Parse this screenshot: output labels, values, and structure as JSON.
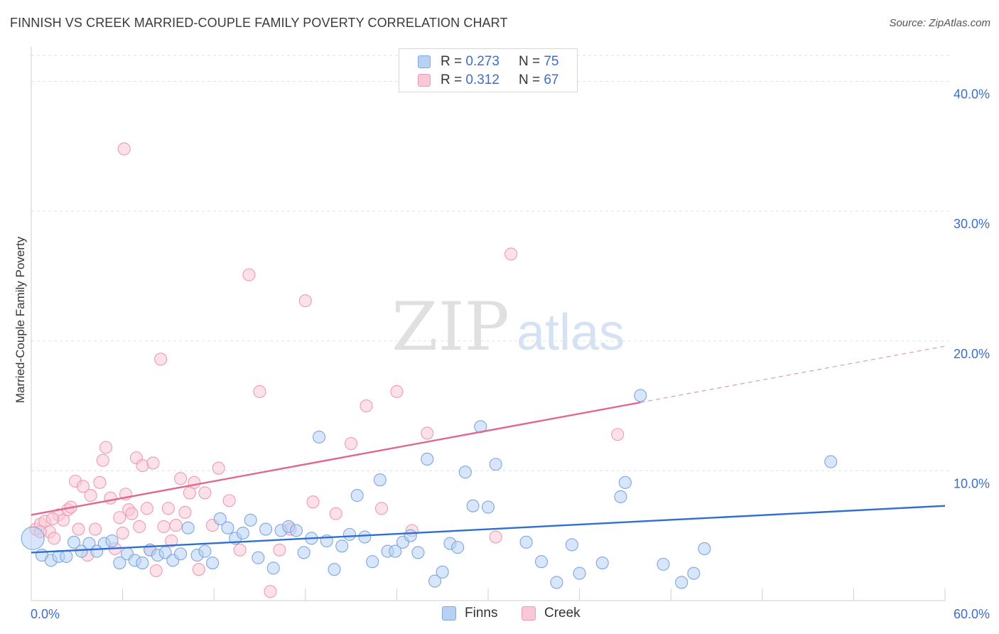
{
  "title": "FINNISH VS CREEK MARRIED-COUPLE FAMILY POVERTY CORRELATION CHART",
  "source": "Source: ZipAtlas.com",
  "watermark": {
    "zip": "ZIP",
    "atlas": "atlas"
  },
  "legend": {
    "rows": [
      {
        "r_label": "R =",
        "r_value": "0.273",
        "n_label": "N =",
        "n_value": "75"
      },
      {
        "r_label": "R =",
        "r_value": "0.312",
        "n_label": "N =",
        "n_value": "67"
      }
    ]
  },
  "bottom_legend": {
    "finns": "Finns",
    "creek": "Creek"
  },
  "colors": {
    "finns_fill": "#b7d1f5",
    "finns_stroke": "#7ea6e0",
    "finns_line": "#2f6fcf",
    "creek_fill": "#f9c8d7",
    "creek_stroke": "#ee9ab4",
    "creek_line": "#e06890",
    "tick_label": "#3a6fc9",
    "grid": "#dde2ea"
  },
  "chart_data": {
    "type": "scatter",
    "title": "FINNISH VS CREEK MARRIED-COUPLE FAMILY POVERTY CORRELATION CHART",
    "xlabel": "",
    "ylabel": "Married-Couple Family Poverty",
    "xlim": [
      0,
      60
    ],
    "ylim": [
      0,
      42
    ],
    "x_tick_labels": [
      {
        "value": 0,
        "label": "0.0%"
      },
      {
        "value": 60,
        "label": "60.0%"
      }
    ],
    "y_tick_labels": [
      {
        "value": 10,
        "label": "10.0%"
      },
      {
        "value": 20,
        "label": "20.0%"
      },
      {
        "value": 30,
        "label": "30.0%"
      },
      {
        "value": 40,
        "label": "40.0%"
      }
    ],
    "x_minor_ticks": [
      0,
      6,
      12,
      18,
      24,
      30,
      36,
      42,
      48,
      54,
      60
    ],
    "series": [
      {
        "name": "Finns",
        "R": 0.273,
        "N": 75,
        "trend": {
          "x0": 0,
          "y0": 3.7,
          "x1": 60,
          "y1": 7.3,
          "dashed_from": null
        },
        "points": [
          [
            0.1,
            4.8,
            "big"
          ],
          [
            0.7,
            3.5
          ],
          [
            1.3,
            3.1
          ],
          [
            1.8,
            3.4
          ],
          [
            2.3,
            3.4
          ],
          [
            2.8,
            4.5
          ],
          [
            3.3,
            3.8
          ],
          [
            3.8,
            4.4
          ],
          [
            4.3,
            3.8
          ],
          [
            4.8,
            4.4
          ],
          [
            5.3,
            4.6
          ],
          [
            5.8,
            2.9
          ],
          [
            6.3,
            3.6
          ],
          [
            6.8,
            3.1
          ],
          [
            7.3,
            2.9
          ],
          [
            7.8,
            3.9
          ],
          [
            8.3,
            3.5
          ],
          [
            8.8,
            3.7
          ],
          [
            9.3,
            3.1
          ],
          [
            9.8,
            3.6
          ],
          [
            10.3,
            5.6
          ],
          [
            10.9,
            3.5
          ],
          [
            11.4,
            3.8
          ],
          [
            11.9,
            2.9
          ],
          [
            12.4,
            6.3
          ],
          [
            12.9,
            5.6
          ],
          [
            13.4,
            4.8
          ],
          [
            13.9,
            5.2
          ],
          [
            14.4,
            6.2
          ],
          [
            14.9,
            3.3
          ],
          [
            15.4,
            5.5
          ],
          [
            15.9,
            2.5
          ],
          [
            16.4,
            5.4
          ],
          [
            16.9,
            5.7
          ],
          [
            17.4,
            5.4
          ],
          [
            17.9,
            3.7
          ],
          [
            18.4,
            4.8
          ],
          [
            18.9,
            12.6
          ],
          [
            19.4,
            4.6
          ],
          [
            19.9,
            2.4
          ],
          [
            20.4,
            4.2
          ],
          [
            20.9,
            5.1
          ],
          [
            21.4,
            8.1
          ],
          [
            21.9,
            4.9
          ],
          [
            22.4,
            3.0
          ],
          [
            22.9,
            9.3
          ],
          [
            23.4,
            3.8
          ],
          [
            23.9,
            3.8
          ],
          [
            24.4,
            4.5
          ],
          [
            24.9,
            5.0
          ],
          [
            25.4,
            3.7
          ],
          [
            26.0,
            10.9
          ],
          [
            26.5,
            1.5
          ],
          [
            27.0,
            2.2
          ],
          [
            27.5,
            4.4
          ],
          [
            28.0,
            4.1
          ],
          [
            28.5,
            9.9
          ],
          [
            29.0,
            7.3
          ],
          [
            29.5,
            13.4
          ],
          [
            30.0,
            7.2
          ],
          [
            30.5,
            10.5
          ],
          [
            32.5,
            4.5
          ],
          [
            33.5,
            3.0
          ],
          [
            34.5,
            1.4
          ],
          [
            35.5,
            4.3
          ],
          [
            36.0,
            2.1
          ],
          [
            37.5,
            2.9
          ],
          [
            38.7,
            8.0
          ],
          [
            39.0,
            9.1
          ],
          [
            40.0,
            15.8
          ],
          [
            41.5,
            2.8
          ],
          [
            42.7,
            1.4
          ],
          [
            43.5,
            2.1
          ],
          [
            44.2,
            4.0
          ],
          [
            52.5,
            10.7
          ]
        ]
      },
      {
        "name": "Creek",
        "R": 0.312,
        "N": 67,
        "trend": {
          "x0": 0,
          "y0": 6.6,
          "x1": 60,
          "y1": 19.6,
          "dashed_from": 40
        },
        "points": [
          [
            0.3,
            5.5
          ],
          [
            0.6,
            5.9
          ],
          [
            0.9,
            6.1
          ],
          [
            1.2,
            5.3
          ],
          [
            1.5,
            4.8
          ],
          [
            1.8,
            6.6
          ],
          [
            2.1,
            6.2
          ],
          [
            2.4,
            7.0
          ],
          [
            2.6,
            7.2
          ],
          [
            2.9,
            9.2
          ],
          [
            3.1,
            5.5
          ],
          [
            3.4,
            8.8
          ],
          [
            3.7,
            3.5
          ],
          [
            3.9,
            8.1
          ],
          [
            4.2,
            5.5
          ],
          [
            4.5,
            9.1
          ],
          [
            4.7,
            10.8
          ],
          [
            4.9,
            11.8
          ],
          [
            5.2,
            7.9
          ],
          [
            5.5,
            4.0
          ],
          [
            5.8,
            6.4
          ],
          [
            6.0,
            5.2
          ],
          [
            6.2,
            8.2
          ],
          [
            6.4,
            7.0
          ],
          [
            6.6,
            6.7
          ],
          [
            6.9,
            11.0
          ],
          [
            7.1,
            5.7
          ],
          [
            7.3,
            10.4
          ],
          [
            7.6,
            7.1
          ],
          [
            7.8,
            3.9
          ],
          [
            8.0,
            10.6
          ],
          [
            8.2,
            2.3
          ],
          [
            8.5,
            18.6
          ],
          [
            8.7,
            5.7
          ],
          [
            9.0,
            7.1
          ],
          [
            9.2,
            4.6
          ],
          [
            9.5,
            5.8
          ],
          [
            9.8,
            9.4
          ],
          [
            10.1,
            6.8
          ],
          [
            10.4,
            8.3
          ],
          [
            10.7,
            9.1
          ],
          [
            11.0,
            2.4
          ],
          [
            11.4,
            8.3
          ],
          [
            11.9,
            5.8
          ],
          [
            12.3,
            10.2
          ],
          [
            13.0,
            7.7
          ],
          [
            13.7,
            3.9
          ],
          [
            14.3,
            25.1
          ],
          [
            15.0,
            16.1
          ],
          [
            15.7,
            0.7
          ],
          [
            16.3,
            3.9
          ],
          [
            17.0,
            5.5
          ],
          [
            18.0,
            23.1
          ],
          [
            18.5,
            7.6
          ],
          [
            20.0,
            6.7
          ],
          [
            21.0,
            12.1
          ],
          [
            22.0,
            15.0
          ],
          [
            23.0,
            7.1
          ],
          [
            24.0,
            16.1
          ],
          [
            25.0,
            5.4
          ],
          [
            26.0,
            12.9
          ],
          [
            30.5,
            4.9
          ],
          [
            31.5,
            26.7
          ],
          [
            38.5,
            12.8
          ],
          [
            6.1,
            34.8
          ],
          [
            0.6,
            5.3
          ],
          [
            1.4,
            6.3
          ]
        ]
      }
    ]
  }
}
